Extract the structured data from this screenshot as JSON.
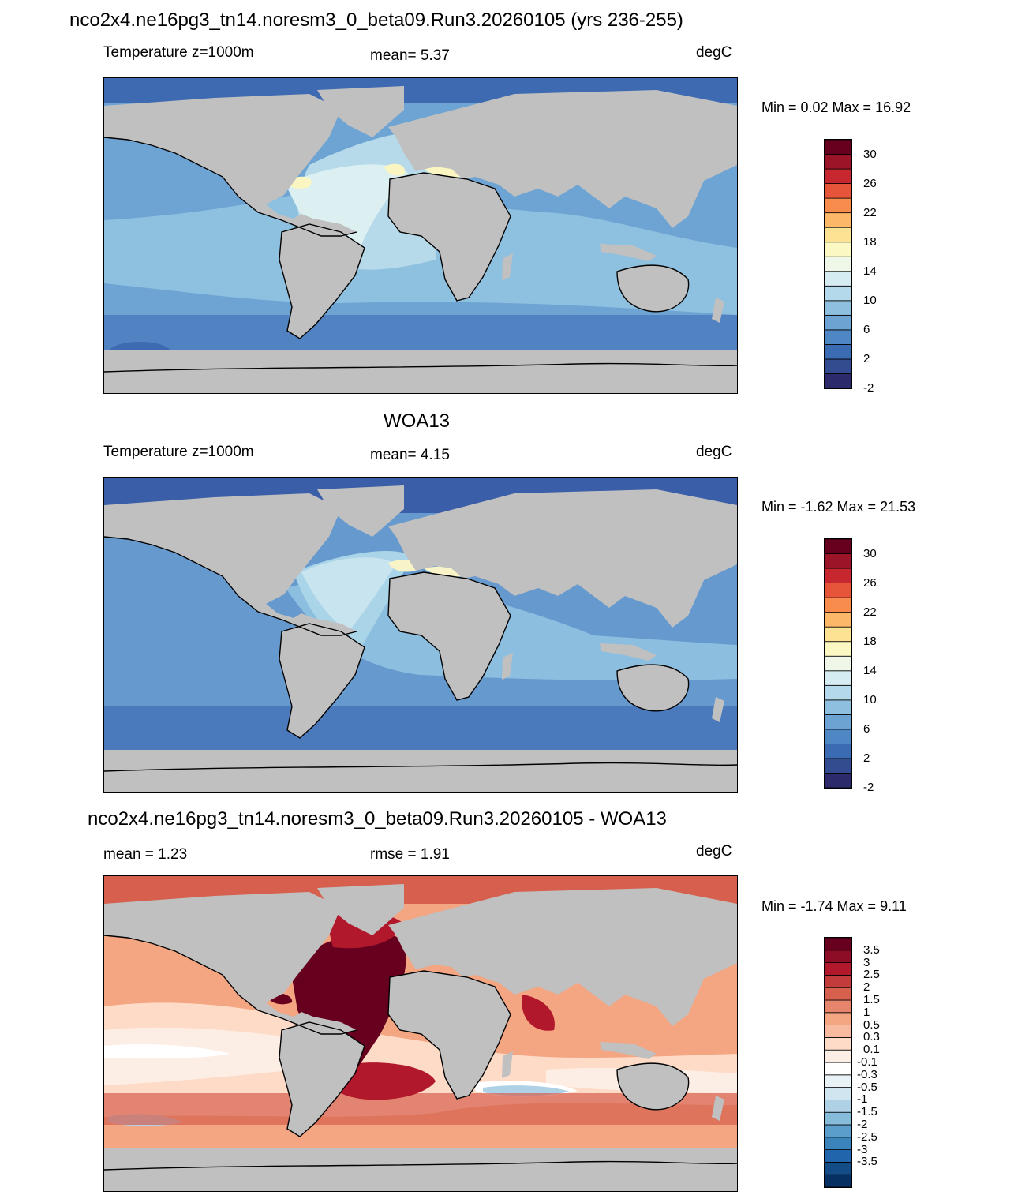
{
  "panels": [
    {
      "title": "nco2x4.ne16pg3_tn14.noresm3_0_beta09.Run3.20260105 (yrs 236-255)",
      "left_label": "Temperature z=1000m",
      "center_label": "mean=   5.37",
      "units": "degC",
      "minmax": "Min =   0.02 Max =  16.92",
      "colorbar": {
        "colors": [
          "#2c2a6b",
          "#334b8f",
          "#3b6cb3",
          "#4f86c4",
          "#6da3d2",
          "#8ebfdf",
          "#b3d9ea",
          "#d6ecf3",
          "#eef7e8",
          "#fbf8c4",
          "#fde294",
          "#fcb769",
          "#f78c4d",
          "#e6553a",
          "#c7272f",
          "#9b1428",
          "#67001f"
        ],
        "ticks": [
          "30",
          "26",
          "22",
          "18",
          "14",
          "10",
          "6",
          "2",
          "-2"
        ]
      }
    },
    {
      "title": "WOA13",
      "left_label": "Temperature z=1000m",
      "center_label": "mean=   4.15",
      "units": "degC",
      "minmax": "Min =  -1.62 Max =  21.53",
      "colorbar": {
        "colors": [
          "#2c2a6b",
          "#334b8f",
          "#3b6cb3",
          "#4f86c4",
          "#6da3d2",
          "#8ebfdf",
          "#b3d9ea",
          "#d6ecf3",
          "#eef7e8",
          "#fbf8c4",
          "#fde294",
          "#fcb769",
          "#f78c4d",
          "#e6553a",
          "#c7272f",
          "#9b1428",
          "#67001f"
        ],
        "ticks": [
          "30",
          "26",
          "22",
          "18",
          "14",
          "10",
          "6",
          "2",
          "-2"
        ]
      }
    },
    {
      "title": "nco2x4.ne16pg3_tn14.noresm3_0_beta09.Run3.20260105 - WOA13",
      "left_label": "mean =   1.23",
      "center_label": "rmse =   1.91",
      "units": "degC",
      "minmax": "Min =  -1.74 Max =   9.11",
      "colorbar": {
        "colors": [
          "#053061",
          "#134c87",
          "#2166ac",
          "#3a84bb",
          "#5b9ecb",
          "#86bcda",
          "#aed1e6",
          "#d1e5f0",
          "#e8f2f7",
          "#ffffff",
          "#fdeee5",
          "#fddbc7",
          "#f8bba0",
          "#f4a582",
          "#e6856b",
          "#d6604d",
          "#c43b3b",
          "#b2182b",
          "#8c0d25",
          "#67001f"
        ],
        "ticks": [
          "3.5",
          "3",
          "2.5",
          "2",
          "1.5",
          "1",
          "0.5",
          "0.3",
          "0.1",
          "-0.1",
          "-0.3",
          "-0.5",
          "-1",
          "-1.5",
          "-2",
          "-2.5",
          "-3",
          "-3.5"
        ]
      }
    }
  ],
  "map_colors": {
    "land": "#c0c0c0",
    "coast": "#000000",
    "panel1": {
      "polar": "#3e6ab2",
      "south": "#5183c3",
      "ocean": "#6ea4d3",
      "mid": "#8ec0df",
      "light": "#b6daea",
      "atlantic": "#dcf0f2",
      "warm": "#fbf5c2"
    },
    "panel2": {
      "polar": "#3a5ea8",
      "south": "#4a79bc",
      "ocean": "#6699cd",
      "mid": "#8cbee0",
      "light": "#aad4e8",
      "atlantic": "#c8e4ef",
      "warm": "#f8f4c8"
    },
    "panel3": {
      "base": "#f4a582",
      "pale": "#fddbc7",
      "paler": "#fdeee5",
      "white": "#ffffff",
      "red": "#d6604d",
      "deep": "#b2182b",
      "max": "#67001f",
      "blue": "#aed1e6"
    }
  }
}
